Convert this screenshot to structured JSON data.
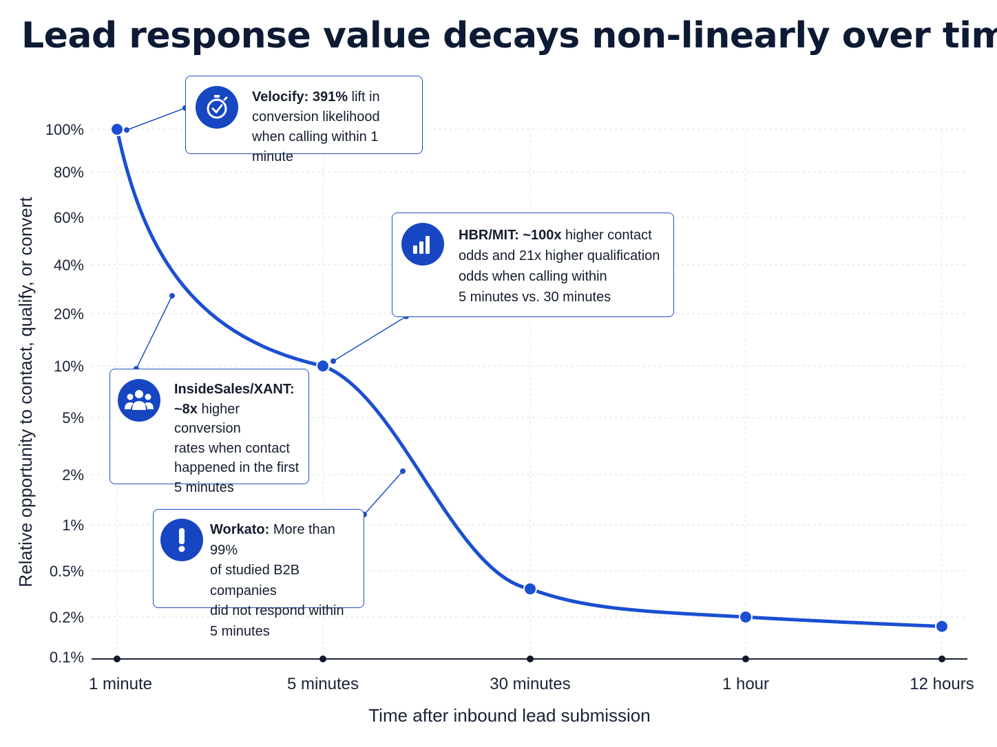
{
  "title": "Lead response value decays non-linearly over time",
  "colors": {
    "accent": "#1646c2",
    "line": "#1a4fd1",
    "grid": "#dcdfe6",
    "axis": "#1a2236"
  },
  "chart_data": {
    "type": "line",
    "title": "Lead response value decays non-linearly over time",
    "xlabel": "Time after inbound lead submission",
    "ylabel": "Relative opportunity to contact, qualify, or convert",
    "categories": [
      "1 minute",
      "5 minutes",
      "30 minutes",
      "1 hour",
      "12 hours"
    ],
    "y_ticks": [
      "100%",
      "80%",
      "60%",
      "40%",
      "20%",
      "10%",
      "5%",
      "2%",
      "1%",
      "0.5%",
      "0.2%",
      "0.1%"
    ],
    "y_scale": "nonlinear (labeled ticks)",
    "grid": true,
    "series": [
      {
        "values": [
          100,
          10,
          0.35,
          0.2,
          0.17
        ]
      }
    ]
  },
  "annotations": [
    {
      "icon": "stopwatch-icon",
      "bold": "Velocify:",
      "bold2": "391%",
      "lines": [
        " lift in",
        "conversion likelihood",
        "when calling within 1 minute"
      ]
    },
    {
      "icon": "bar-chart-icon",
      "bold": "HBR/MIT:",
      "bold2": "~100x",
      "lines": [
        " higher contact",
        "odds and 21x higher qualification",
        "odds when calling within",
        "5 minutes vs. 30 minutes"
      ]
    },
    {
      "icon": "people-icon",
      "bold": "InsideSales/XANT:",
      "bold2": "~8x",
      "lines": [
        "",
        " higher conversion",
        "rates when contact",
        "happened in the first",
        "5 minutes"
      ]
    },
    {
      "icon": "alert-icon",
      "bold": "Workato:",
      "bold2": "",
      "lines": [
        " More than 99%",
        "of studied B2B companies",
        "did not respond within",
        "5 minutes"
      ]
    }
  ]
}
